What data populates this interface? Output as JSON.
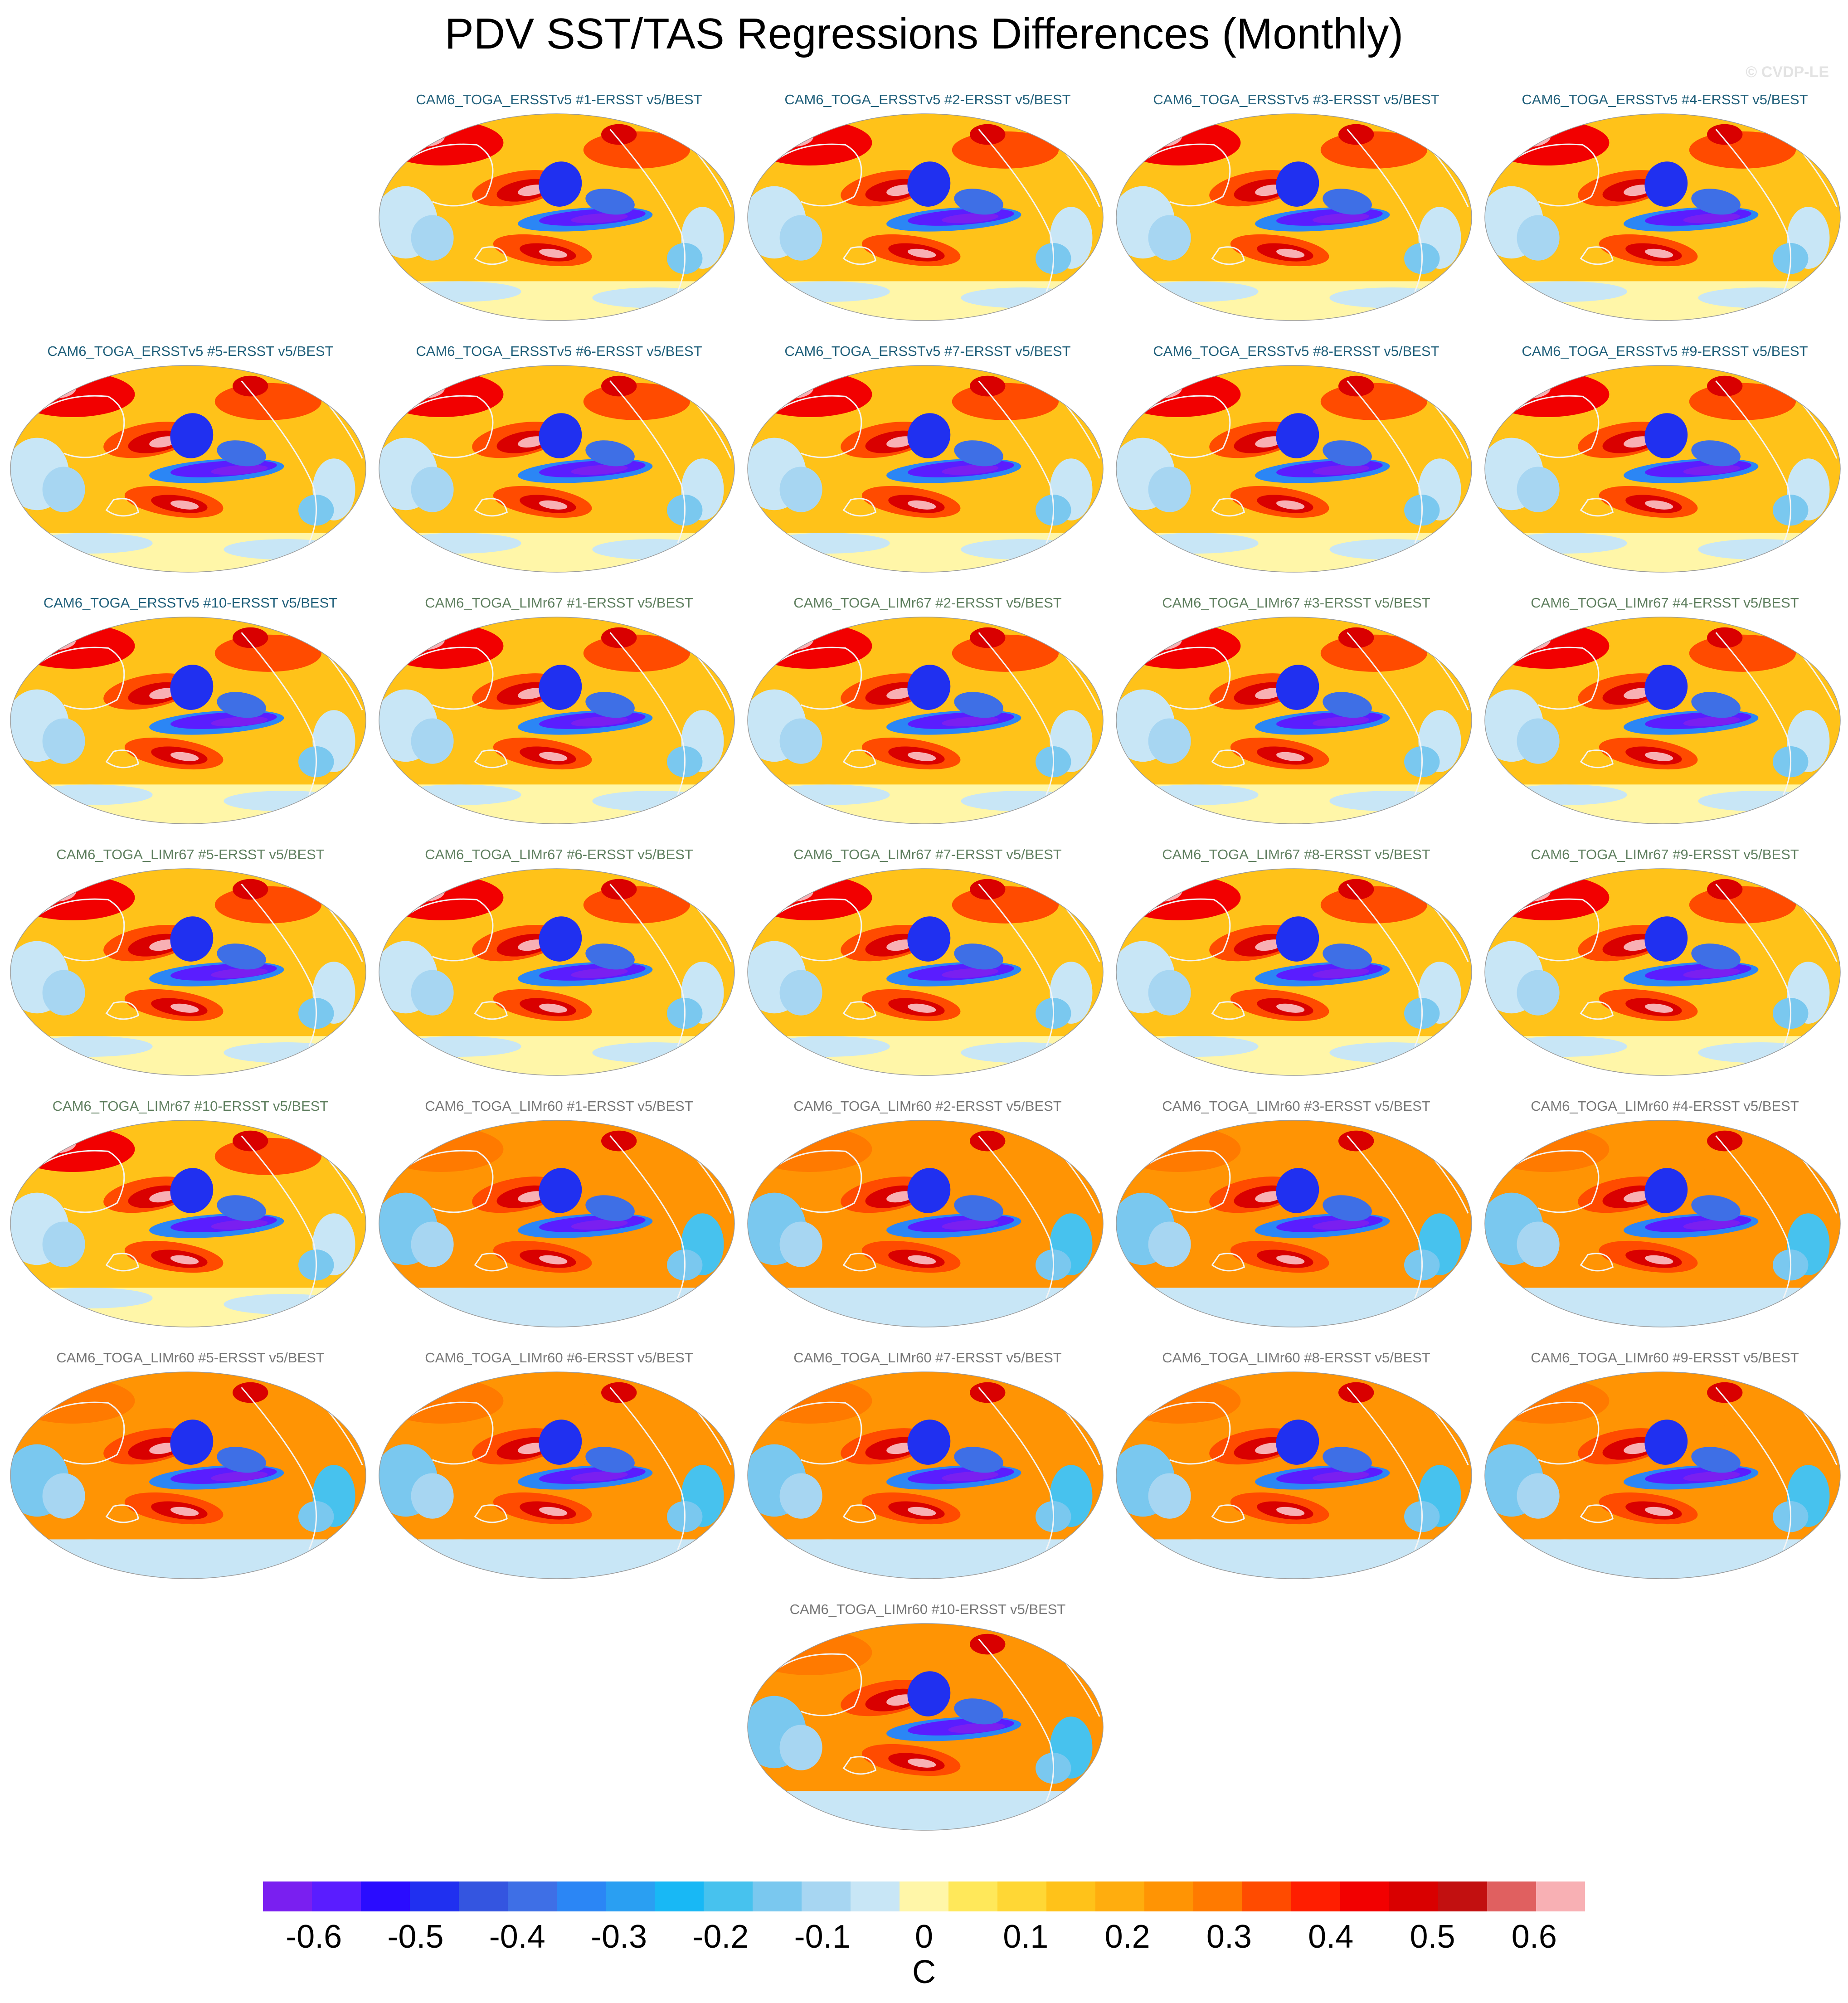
{
  "title": "PDV SST/TAS Regressions Differences (Monthly)",
  "credit": "© CVDP-LE",
  "chart_data": {
    "type": "heatmap",
    "projection": "Robinson (Pacific-centered global maps)",
    "field": "PDV SST/TAS regression differences",
    "colorbar": {
      "units": "C",
      "levels": [
        -0.65,
        -0.6,
        -0.55,
        -0.5,
        -0.45,
        -0.4,
        -0.35,
        -0.3,
        -0.25,
        -0.2,
        -0.15,
        -0.1,
        -0.05,
        0,
        0.05,
        0.1,
        0.15,
        0.2,
        0.25,
        0.3,
        0.35,
        0.4,
        0.45,
        0.5,
        0.55,
        0.6,
        0.65
      ],
      "tick_labels": [
        "-0.6",
        "-0.5",
        "-0.4",
        "-0.3",
        "-0.2",
        "-0.1",
        "0",
        "0.1",
        "0.2",
        "0.3",
        "0.4",
        "0.5",
        "0.6"
      ],
      "colors": [
        "#7a1ff0",
        "#5a1dff",
        "#2a0cff",
        "#2030f0",
        "#3455e0",
        "#3e6fe6",
        "#2b86f5",
        "#2a9ff2",
        "#18b8f5",
        "#47c2ee",
        "#7ac8ef",
        "#a7d6f2",
        "#c8e6f6",
        "#fff6a8",
        "#ffe85a",
        "#ffd735",
        "#ffc219",
        "#ffad0e",
        "#ff9404",
        "#ff7a00",
        "#ff4b00",
        "#ff1e00",
        "#f20000",
        "#d90000",
        "#c21010",
        "#e06060",
        "#f8b0b4"
      ]
    },
    "panels": [
      {
        "label": "CAM6_TOGA_ERSSTv5 #1-ERSST v5/BEST",
        "group": "ERSSTv5"
      },
      {
        "label": "CAM6_TOGA_ERSSTv5 #2-ERSST v5/BEST",
        "group": "ERSSTv5"
      },
      {
        "label": "CAM6_TOGA_ERSSTv5 #3-ERSST v5/BEST",
        "group": "ERSSTv5"
      },
      {
        "label": "CAM6_TOGA_ERSSTv5 #4-ERSST v5/BEST",
        "group": "ERSSTv5"
      },
      {
        "label": "CAM6_TOGA_ERSSTv5 #5-ERSST v5/BEST",
        "group": "ERSSTv5"
      },
      {
        "label": "CAM6_TOGA_ERSSTv5 #6-ERSST v5/BEST",
        "group": "ERSSTv5"
      },
      {
        "label": "CAM6_TOGA_ERSSTv5 #7-ERSST v5/BEST",
        "group": "ERSSTv5"
      },
      {
        "label": "CAM6_TOGA_ERSSTv5 #8-ERSST v5/BEST",
        "group": "ERSSTv5"
      },
      {
        "label": "CAM6_TOGA_ERSSTv5 #9-ERSST v5/BEST",
        "group": "ERSSTv5"
      },
      {
        "label": "CAM6_TOGA_ERSSTv5 #10-ERSST v5/BEST",
        "group": "ERSSTv5"
      },
      {
        "label": "CAM6_TOGA_LIMr67 #1-ERSST v5/BEST",
        "group": "LIMr67"
      },
      {
        "label": "CAM6_TOGA_LIMr67 #2-ERSST v5/BEST",
        "group": "LIMr67"
      },
      {
        "label": "CAM6_TOGA_LIMr67 #3-ERSST v5/BEST",
        "group": "LIMr67"
      },
      {
        "label": "CAM6_TOGA_LIMr67 #4-ERSST v5/BEST",
        "group": "LIMr67"
      },
      {
        "label": "CAM6_TOGA_LIMr67 #5-ERSST v5/BEST",
        "group": "LIMr67"
      },
      {
        "label": "CAM6_TOGA_LIMr67 #6-ERSST v5/BEST",
        "group": "LIMr67"
      },
      {
        "label": "CAM6_TOGA_LIMr67 #7-ERSST v5/BEST",
        "group": "LIMr67"
      },
      {
        "label": "CAM6_TOGA_LIMr67 #8-ERSST v5/BEST",
        "group": "LIMr67"
      },
      {
        "label": "CAM6_TOGA_LIMr67 #9-ERSST v5/BEST",
        "group": "LIMr67"
      },
      {
        "label": "CAM6_TOGA_LIMr67 #10-ERSST v5/BEST",
        "group": "LIMr67"
      },
      {
        "label": "CAM6_TOGA_LIMr60 #1-ERSST v5/BEST",
        "group": "LIMr60"
      },
      {
        "label": "CAM6_TOGA_LIMr60 #2-ERSST v5/BEST",
        "group": "LIMr60"
      },
      {
        "label": "CAM6_TOGA_LIMr60 #3-ERSST v5/BEST",
        "group": "LIMr60"
      },
      {
        "label": "CAM6_TOGA_LIMr60 #4-ERSST v5/BEST",
        "group": "LIMr60"
      },
      {
        "label": "CAM6_TOGA_LIMr60 #5-ERSST v5/BEST",
        "group": "LIMr60"
      },
      {
        "label": "CAM6_TOGA_LIMr60 #6-ERSST v5/BEST",
        "group": "LIMr60"
      },
      {
        "label": "CAM6_TOGA_LIMr60 #7-ERSST v5/BEST",
        "group": "LIMr60"
      },
      {
        "label": "CAM6_TOGA_LIMr60 #8-ERSST v5/BEST",
        "group": "LIMr60"
      },
      {
        "label": "CAM6_TOGA_LIMr60 #9-ERSST v5/BEST",
        "group": "LIMr60"
      },
      {
        "label": "CAM6_TOGA_LIMr60 #10-ERSST v5/BEST",
        "group": "LIMr60"
      }
    ],
    "label_colors": {
      "ERSSTv5": "#1f5f7a",
      "LIMr67": "#5f7f5f",
      "LIMr60": "#777777"
    }
  }
}
